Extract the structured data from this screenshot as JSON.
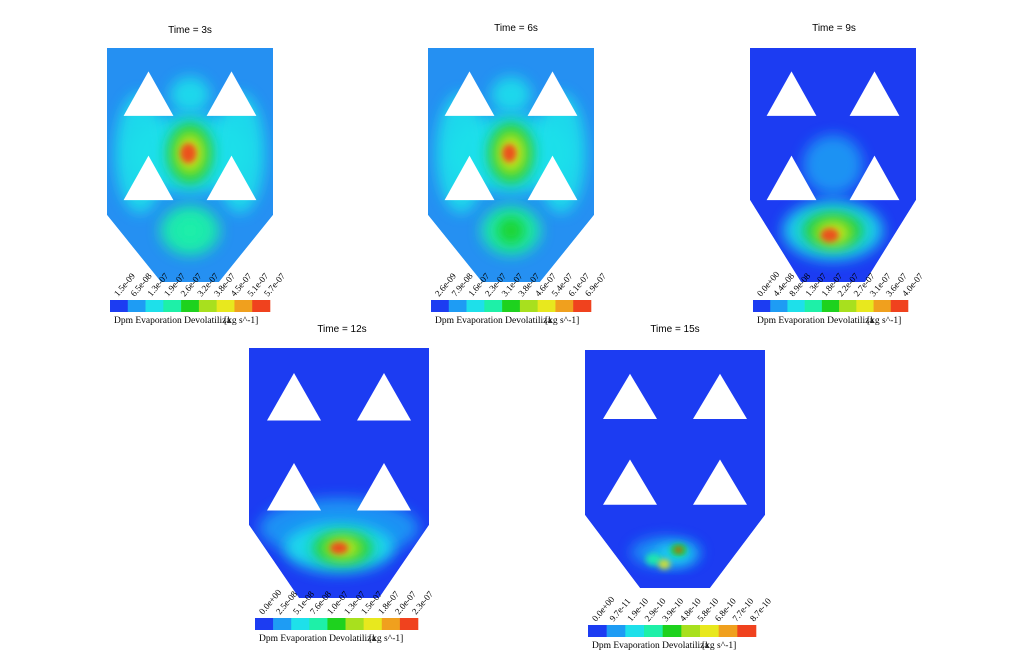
{
  "panels": [
    {
      "title": "Time = 3s",
      "ticks": [
        "1.5e-09",
        "6.5e-08",
        "1.3e-07",
        "1.9e-07",
        "2.6e-07",
        "3.2e-07",
        "3.8e-07",
        "4.5e-07",
        "5.1e-07",
        "5.7e-07"
      ],
      "label": "Dpm Evaporation Devolatiliza",
      "unit": "[kg s^-1]"
    },
    {
      "title": "Time = 6s",
      "ticks": [
        "2.6e-09",
        "7.9e-08",
        "1.6e-07",
        "2.3e-07",
        "3.1e-07",
        "3.8e-07",
        "4.6e-07",
        "5.4e-07",
        "6.1e-07",
        "6.9e-07"
      ],
      "label": "Dpm Evaporation Devolatiliza",
      "unit": "[kg s^-1]"
    },
    {
      "title": "Time = 9s",
      "ticks": [
        "0.0e+00",
        "4.4e-08",
        "8.9e-08",
        "1.3e-07",
        "1.8e-07",
        "2.2e-07",
        "2.7e-07",
        "3.1e-07",
        "3.6e-07",
        "4.0e-07"
      ],
      "label": "Dpm Evaporation Devolatiliza",
      "unit": "[kg s^-1]"
    },
    {
      "title": "Time = 12s",
      "ticks": [
        "0.0e+00",
        "2.5e-08",
        "5.1e-08",
        "7.6e-08",
        "1.0e-07",
        "1.3e-07",
        "1.5e-07",
        "1.8e-07",
        "2.0e-07",
        "2.3e-07"
      ],
      "label": "Dpm Evaporation Devolatiliza",
      "unit": "[kg s^-1]"
    },
    {
      "title": "Time = 15s",
      "ticks": [
        "0.0e+00",
        "9.7e-11",
        "1.9e-10",
        "2.9e-10",
        "3.9e-10",
        "4.8e-10",
        "5.8e-10",
        "6.8e-10",
        "7.7e-10",
        "8.7e-10"
      ],
      "label": "Dpm Evaporation Devolatiliza",
      "unit": "[kg s^-1]"
    }
  ],
  "colorbar_colors": [
    "#1c3cf2",
    "#1e9cf4",
    "#1ee0ea",
    "#1ef0a8",
    "#1ed21e",
    "#a8e01e",
    "#e8e81e",
    "#f0a01e",
    "#f0421e"
  ]
}
